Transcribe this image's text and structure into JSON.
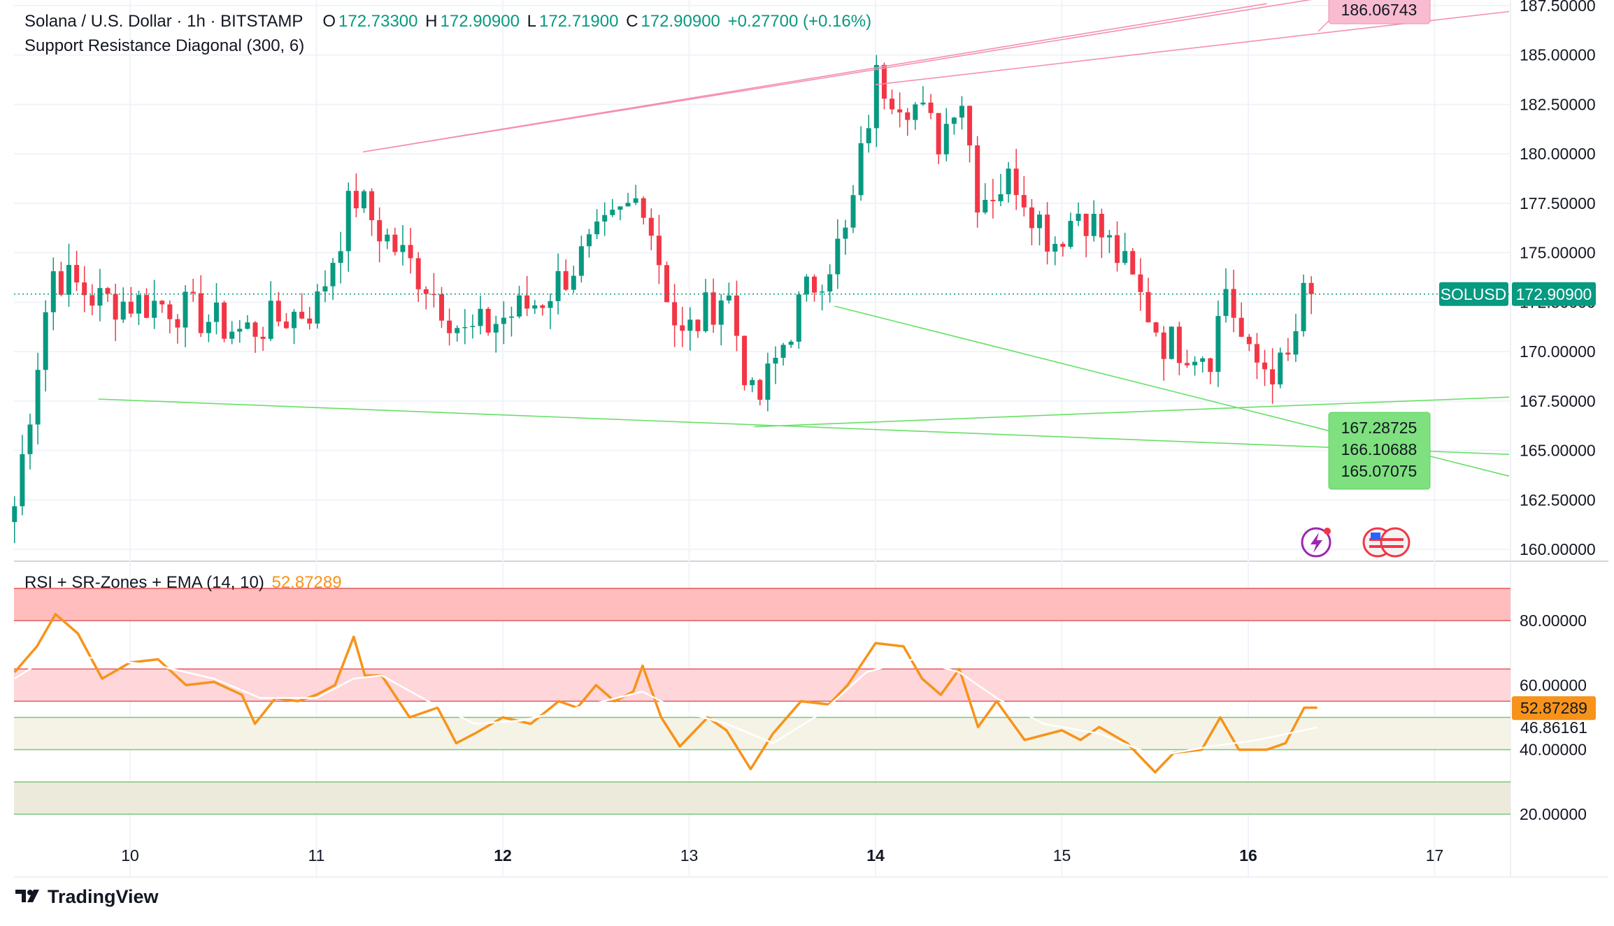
{
  "header": {
    "symbol_title": "Solana / U.S. Dollar · 1h · BITSTAMP",
    "open_label": "O",
    "open": "172.73300",
    "high_label": "H",
    "high": "172.90900",
    "low_label": "L",
    "low": "172.71900",
    "close_label": "C",
    "close": "172.90900",
    "change": "+0.27700 (+0.16%)",
    "indicator_title": "Support Resistance Diagonal (300, 6)"
  },
  "rsi_legend": {
    "title": "RSI + SR-Zones + EMA (14, 10)",
    "value": "52.87289"
  },
  "price_badges": {
    "symbol": "SOLUSD",
    "last": "172.90900",
    "resistance": "186.06743",
    "supports": [
      "167.28725",
      "166.10688",
      "165.07075"
    ]
  },
  "rsi_badges": {
    "rsi": "52.87289",
    "ema": "46.86161"
  },
  "brand": "TradingView",
  "colors": {
    "up": "#089981",
    "down": "#f23645",
    "rsi": "#f7931a",
    "resistance": "#f48fb1",
    "support": "#66e066",
    "badge_green": "#7ee07e",
    "badge_pink": "#f8bbd0"
  },
  "chart_data": [
    {
      "type": "candlestick",
      "title": "Solana / U.S. Dollar · 1h · BITSTAMP",
      "ylim": [
        160,
        187.5
      ],
      "y_ticks": [
        "160.00000",
        "162.50000",
        "165.00000",
        "167.50000",
        "170.00000",
        "172.50000",
        "175.00000",
        "177.50000",
        "180.00000",
        "182.50000",
        "185.00000",
        "187.50000"
      ],
      "x_ticks": [
        "10",
        "11",
        "12",
        "13",
        "14",
        "15",
        "16",
        "17"
      ],
      "last_price": 172.909,
      "anchors": [
        {
          "day": 9.38,
          "price": 162.2
        },
        {
          "day": 9.58,
          "price": 174.1
        },
        {
          "day": 9.83,
          "price": 172.6
        },
        {
          "day": 10.2,
          "price": 172.4
        },
        {
          "day": 10.6,
          "price": 171.0
        },
        {
          "day": 11.0,
          "price": 172.3
        },
        {
          "day": 11.2,
          "price": 178.0
        },
        {
          "day": 11.35,
          "price": 176.0
        },
        {
          "day": 11.6,
          "price": 173.4
        },
        {
          "day": 11.8,
          "price": 170.8
        },
        {
          "day": 12.2,
          "price": 172.6
        },
        {
          "day": 12.5,
          "price": 175.5
        },
        {
          "day": 12.75,
          "price": 178.0
        },
        {
          "day": 12.95,
          "price": 170.5
        },
        {
          "day": 13.2,
          "price": 173.2
        },
        {
          "day": 13.35,
          "price": 167.0
        },
        {
          "day": 13.6,
          "price": 172.5
        },
        {
          "day": 13.85,
          "price": 176.0
        },
        {
          "day": 14.0,
          "price": 183.8
        },
        {
          "day": 14.2,
          "price": 182.6
        },
        {
          "day": 14.35,
          "price": 180.6
        },
        {
          "day": 14.45,
          "price": 183.7
        },
        {
          "day": 14.55,
          "price": 177.8
        },
        {
          "day": 14.75,
          "price": 178.8
        },
        {
          "day": 14.95,
          "price": 175.5
        },
        {
          "day": 15.1,
          "price": 177.3
        },
        {
          "day": 15.3,
          "price": 174.8
        },
        {
          "day": 15.55,
          "price": 170.5
        },
        {
          "day": 15.8,
          "price": 170.0
        },
        {
          "day": 15.88,
          "price": 173.3
        },
        {
          "day": 16.0,
          "price": 169.5
        },
        {
          "day": 16.2,
          "price": 169.0
        },
        {
          "day": 16.3,
          "price": 172.7
        },
        {
          "day": 16.37,
          "price": 172.9
        }
      ],
      "resistance_lines": [
        {
          "from": {
            "day": 11.25,
            "price": 180.1
          },
          "to": {
            "day": 16.1,
            "price": 187.6
          }
        },
        {
          "from": {
            "day": 11.25,
            "price": 180.1
          },
          "to": {
            "day": 16.4,
            "price": 187.9
          }
        },
        {
          "from": {
            "day": 14.0,
            "price": 183.5
          },
          "to": {
            "day": 17.4,
            "price": 187.2
          }
        }
      ],
      "support_lines": [
        {
          "from": {
            "day": 9.83,
            "price": 167.6
          },
          "to": {
            "day": 17.4,
            "price": 164.8
          }
        },
        {
          "from": {
            "day": 13.35,
            "price": 166.2
          },
          "to": {
            "day": 17.4,
            "price": 167.7
          }
        },
        {
          "from": {
            "day": 13.78,
            "price": 172.3
          },
          "to": {
            "day": 17.4,
            "price": 163.7
          }
        }
      ]
    },
    {
      "type": "line",
      "title": "RSI + SR-Zones + EMA (14, 10)",
      "ylim": [
        20,
        90
      ],
      "y_ticks": [
        "20.00000",
        "40.00000",
        "60.00000",
        "80.00000"
      ],
      "zones": [
        {
          "from": 80,
          "to": 90,
          "color": "#ffbdbd"
        },
        {
          "from": 55,
          "to": 65,
          "color": "#ffd6d9"
        },
        {
          "from": 40,
          "to": 50,
          "color": "#f5f3e6"
        },
        {
          "from": 20,
          "to": 30,
          "color": "#eceadb"
        }
      ],
      "series": [
        {
          "color": "#f7931a",
          "points": [
            [
              9.38,
              64
            ],
            [
              9.5,
              72
            ],
            [
              9.6,
              82
            ],
            [
              9.72,
              76
            ],
            [
              9.85,
              62
            ],
            [
              10.0,
              67
            ],
            [
              10.15,
              68
            ],
            [
              10.3,
              60
            ],
            [
              10.45,
              61
            ],
            [
              10.6,
              57
            ],
            [
              10.67,
              48
            ],
            [
              10.78,
              56
            ],
            [
              10.9,
              55
            ],
            [
              11.0,
              57
            ],
            [
              11.1,
              60
            ],
            [
              11.2,
              75
            ],
            [
              11.26,
              63
            ],
            [
              11.35,
              63
            ],
            [
              11.5,
              50
            ],
            [
              11.65,
              53
            ],
            [
              11.75,
              42
            ],
            [
              11.85,
              45
            ],
            [
              12.0,
              50
            ],
            [
              12.15,
              48
            ],
            [
              12.3,
              55
            ],
            [
              12.4,
              53
            ],
            [
              12.5,
              60
            ],
            [
              12.6,
              55
            ],
            [
              12.7,
              58
            ],
            [
              12.75,
              66
            ],
            [
              12.85,
              50
            ],
            [
              12.95,
              41
            ],
            [
              13.1,
              50
            ],
            [
              13.2,
              46
            ],
            [
              13.33,
              34
            ],
            [
              13.45,
              45
            ],
            [
              13.6,
              55
            ],
            [
              13.75,
              54
            ],
            [
              13.85,
              60
            ],
            [
              14.0,
              73
            ],
            [
              14.15,
              72
            ],
            [
              14.25,
              62
            ],
            [
              14.35,
              57
            ],
            [
              14.45,
              65
            ],
            [
              14.55,
              47
            ],
            [
              14.65,
              55
            ],
            [
              14.8,
              43
            ],
            [
              15.0,
              46
            ],
            [
              15.1,
              43
            ],
            [
              15.2,
              47
            ],
            [
              15.35,
              42
            ],
            [
              15.5,
              33
            ],
            [
              15.6,
              39
            ],
            [
              15.75,
              40
            ],
            [
              15.85,
              50
            ],
            [
              15.95,
              40
            ],
            [
              16.1,
              40
            ],
            [
              16.2,
              42
            ],
            [
              16.3,
              53
            ],
            [
              16.37,
              53
            ]
          ]
        },
        {
          "color": "#ffffff",
          "points": [
            [
              9.38,
              62
            ],
            [
              9.6,
              70
            ],
            [
              9.85,
              68
            ],
            [
              10.15,
              66
            ],
            [
              10.45,
              62
            ],
            [
              10.7,
              56
            ],
            [
              11.0,
              56
            ],
            [
              11.2,
              62
            ],
            [
              11.35,
              63
            ],
            [
              11.6,
              55
            ],
            [
              11.85,
              48
            ],
            [
              12.1,
              49
            ],
            [
              12.4,
              53
            ],
            [
              12.75,
              58
            ],
            [
              12.95,
              52
            ],
            [
              13.2,
              48
            ],
            [
              13.45,
              42
            ],
            [
              13.7,
              51
            ],
            [
              13.95,
              64
            ],
            [
              14.2,
              68
            ],
            [
              14.45,
              64
            ],
            [
              14.65,
              56
            ],
            [
              14.9,
              48
            ],
            [
              15.2,
              45
            ],
            [
              15.5,
              38
            ],
            [
              15.8,
              41
            ],
            [
              16.05,
              43
            ],
            [
              16.37,
              46.9
            ]
          ]
        }
      ]
    }
  ]
}
